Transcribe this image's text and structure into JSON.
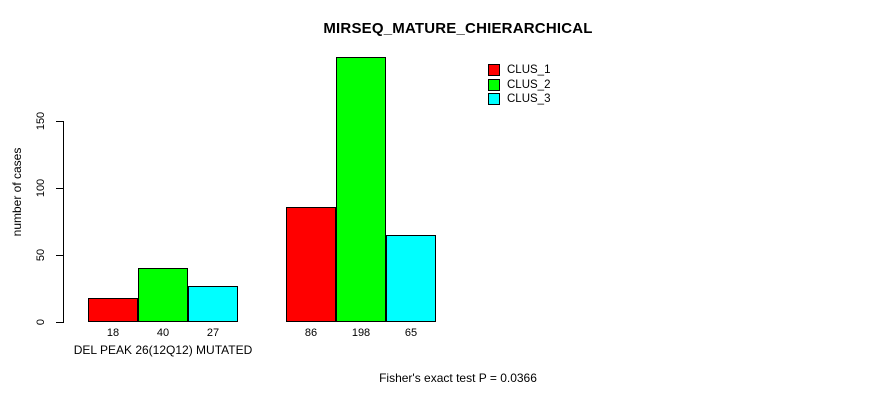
{
  "chart_data": {
    "type": "bar",
    "title": "MIRSEQ_MATURE_CHIERARCHICAL",
    "ylabel": "number of cases",
    "xlabel": "",
    "ylim": [
      0,
      150
    ],
    "yticks": [
      0,
      50,
      100,
      150
    ],
    "grid": false,
    "categories": [
      "DEL PEAK 26(12Q12) MUTATED",
      ""
    ],
    "series": [
      {
        "name": "CLUS_1",
        "color": "#ff0000",
        "values": [
          18,
          86
        ]
      },
      {
        "name": "CLUS_2",
        "color": "#00ff00",
        "values": [
          40,
          198
        ]
      },
      {
        "name": "CLUS_3",
        "color": "#00ffff",
        "values": [
          27,
          65
        ]
      }
    ],
    "bar_value_labels": [
      [
        18,
        40,
        27
      ],
      [
        86,
        198,
        65
      ]
    ],
    "legend": {
      "position": "top-right",
      "entries": [
        "CLUS_1",
        "CLUS_2",
        "CLUS_3"
      ]
    },
    "annotation": "Fisher's exact test P = 0.0366"
  }
}
